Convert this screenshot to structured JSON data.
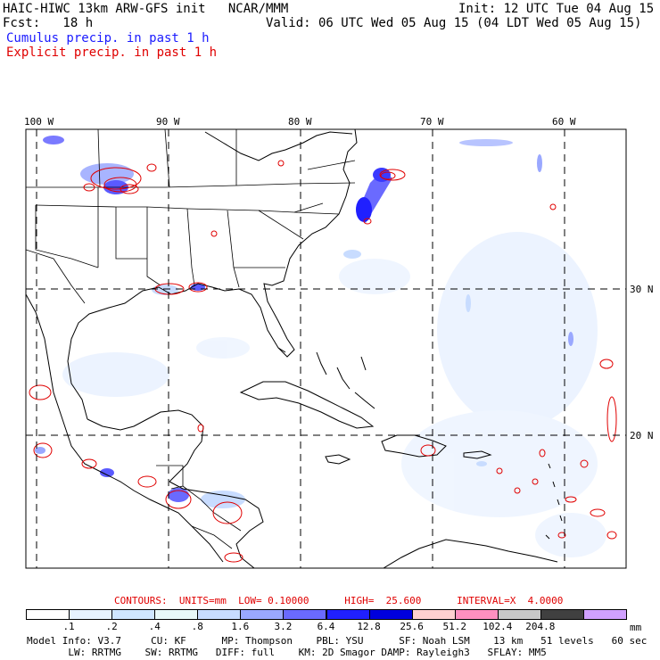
{
  "header": {
    "left_line1": "HAIC-HIWC 13km ARW-GFS init   NCAR/MMM",
    "left_line2": "Fcst:   18 h",
    "init": "Init: 12 UTC Tue 04 Aug 15",
    "valid": "Valid: 06 UTC Wed 05 Aug 15 (04 LDT Wed 05 Aug 15)",
    "cumulus_label": "Cumulus precip. in past 1 h",
    "explicit_label": "Explicit precip. in past 1 h",
    "cumulus_color": "#1a1aff",
    "explicit_color": "#e00000"
  },
  "map": {
    "lon_labels": [
      "100 W",
      "90 W",
      "80 W",
      "70 W",
      "60 W"
    ],
    "lat_labels": [
      "30 N",
      "20 N"
    ],
    "coast_color": "#000000",
    "grid_style": "dashed"
  },
  "contours": {
    "label": "CONTOURS:  UNITS=mm  LOW= 0.10000      HIGH=  25.600      INTERVAL=X  4.0000"
  },
  "colorbar": {
    "units": "mm",
    "labels": [
      ".1",
      ".2",
      ".4",
      ".8",
      "1.6",
      "3.2",
      "6.4",
      "12.8",
      "25.6",
      "51.2",
      "102.4",
      "204.8"
    ],
    "colors": [
      "#ffffff",
      "#e6f2ff",
      "#cfe6ff",
      "#e8f8f8",
      "#c8dcff",
      "#9aa8ff",
      "#6a6aff",
      "#2020ff",
      "#0000dd",
      "#ffd0d0",
      "#ff90c0",
      "#c8c8c8",
      "#404040",
      "#d0a0ff"
    ]
  },
  "model_info": {
    "line1": "Model Info: V3.7     CU: KF      MP: Thompson    PBL: YSU      SF: Noah LSM    13 km   51 levels   60 sec",
    "line2": "       LW: RRTMG    SW: RRTMG   DIFF: full    KM: 2D Smagor DAMP: Rayleigh3   SFLAY: MM5"
  }
}
